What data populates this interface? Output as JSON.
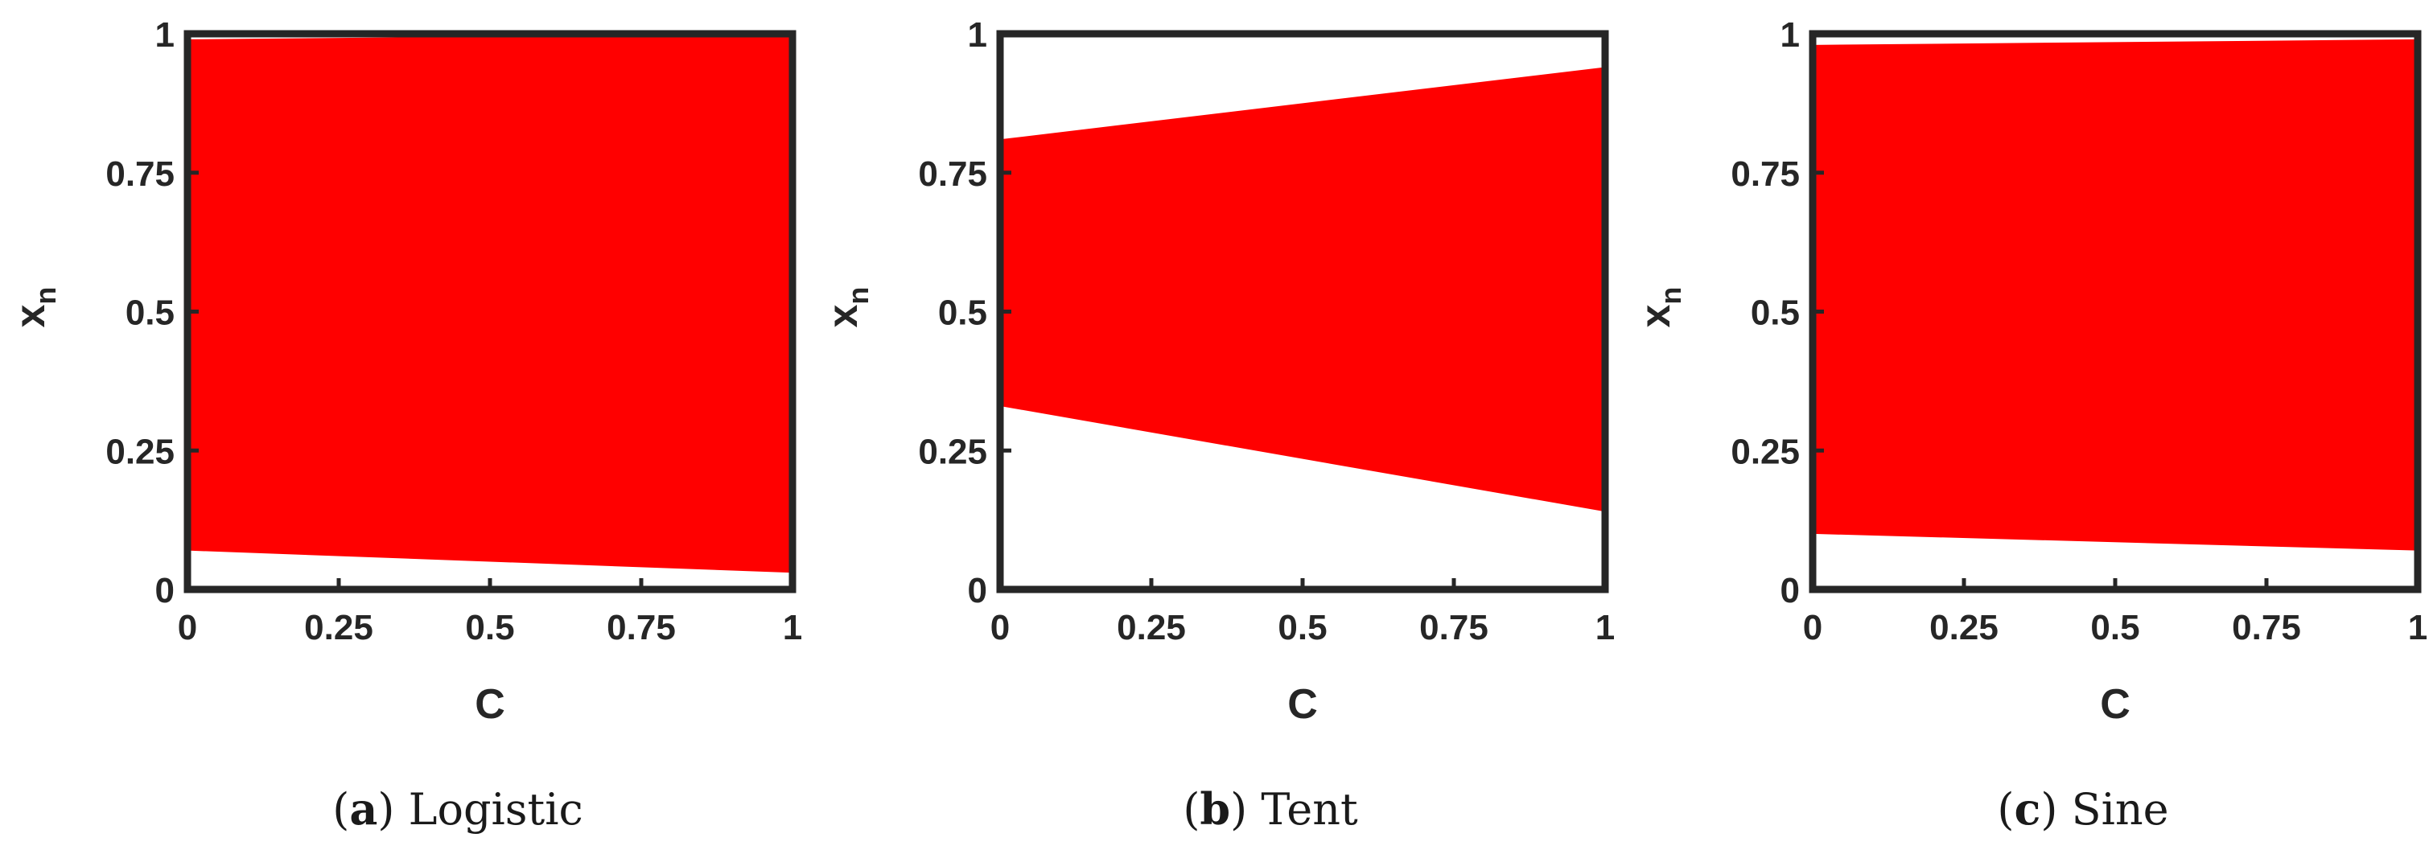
{
  "colors": {
    "band": "#ff0000",
    "axis": "#262626"
  },
  "chart_data": [
    {
      "type": "area",
      "x": [
        0,
        1
      ],
      "lower": [
        0.07,
        0.03
      ],
      "upper": [
        0.99,
        1.0
      ],
      "xlabel": "C",
      "ylabel": "x",
      "ylabel_sub": "n",
      "xlim": [
        0,
        1
      ],
      "ylim": [
        0,
        1
      ],
      "xticks": [
        "0",
        "0.25",
        "0.5",
        "0.75",
        "1"
      ],
      "yticks": [
        "0",
        "0.25",
        "0.5",
        "0.75",
        "1"
      ],
      "caption_letter": "a",
      "caption_text": "Logistic"
    },
    {
      "type": "area",
      "x": [
        0,
        1
      ],
      "lower": [
        0.33,
        0.14
      ],
      "upper": [
        0.81,
        0.94
      ],
      "xlabel": "C",
      "ylabel": "x",
      "ylabel_sub": "n",
      "xlim": [
        0,
        1
      ],
      "ylim": [
        0,
        1
      ],
      "xticks": [
        "0",
        "0.25",
        "0.5",
        "0.75",
        "1"
      ],
      "yticks": [
        "0",
        "0.25",
        "0.5",
        "0.75",
        "1"
      ],
      "caption_letter": "b",
      "caption_text": "Tent"
    },
    {
      "type": "area",
      "x": [
        0,
        1
      ],
      "lower": [
        0.1,
        0.07
      ],
      "upper": [
        0.98,
        0.99
      ],
      "xlabel": "C",
      "ylabel": "x",
      "ylabel_sub": "n",
      "xlim": [
        0,
        1
      ],
      "ylim": [
        0,
        1
      ],
      "xticks": [
        "0",
        "0.25",
        "0.5",
        "0.75",
        "1"
      ],
      "yticks": [
        "0",
        "0.25",
        "0.5",
        "0.75",
        "1"
      ],
      "caption_letter": "c",
      "caption_text": "Sine"
    }
  ]
}
